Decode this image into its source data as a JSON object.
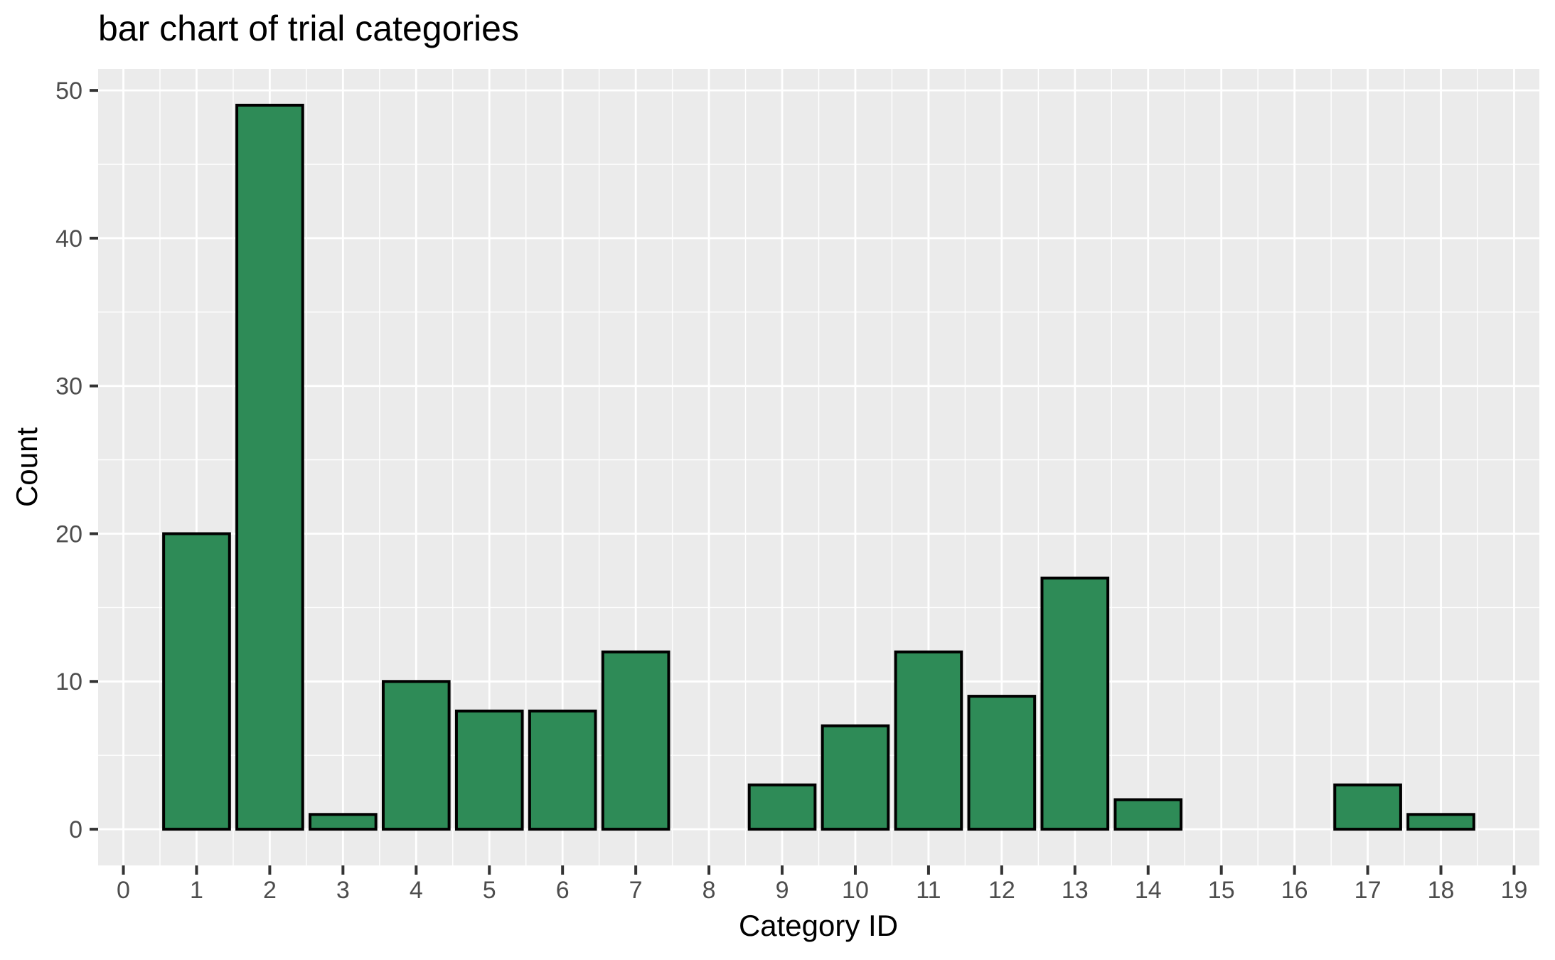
{
  "chart_data": {
    "type": "bar",
    "title": "bar chart of trial categories",
    "xlabel": "Category ID",
    "ylabel": "Count",
    "categories": [
      0,
      1,
      2,
      3,
      4,
      5,
      6,
      7,
      8,
      9,
      10,
      11,
      12,
      13,
      14,
      15,
      16,
      17,
      18,
      19
    ],
    "values": [
      0,
      20,
      49,
      1,
      10,
      8,
      8,
      12,
      0,
      3,
      7,
      12,
      9,
      17,
      2,
      0,
      0,
      3,
      1,
      0
    ],
    "bar_width": 0.9,
    "xlim": [
      -0.345,
      19.345
    ],
    "ylim": [
      -2.45,
      51.45
    ],
    "x_ticks": [
      0,
      1,
      2,
      3,
      4,
      5,
      6,
      7,
      8,
      9,
      10,
      11,
      12,
      13,
      14,
      15,
      16,
      17,
      18,
      19
    ],
    "y_ticks": [
      0,
      10,
      20,
      30,
      40,
      50
    ],
    "y_minor_ticks": [
      5,
      15,
      25,
      35,
      45
    ],
    "x_minor_ticks": [
      0.5,
      1.5,
      2.5,
      3.5,
      4.5,
      5.5,
      6.5,
      7.5,
      8.5,
      9.5,
      10.5,
      11.5,
      12.5,
      13.5,
      14.5,
      15.5,
      16.5,
      17.5,
      18.5
    ],
    "grid": "major+minor",
    "legend": "none",
    "style": {
      "bar_fill": "#2e8b57",
      "bar_edge": "#000000",
      "panel_bg": "#ebebeb",
      "grid_color": "#ffffff",
      "tick_label_color": "#4d4d4d",
      "tick_mark_color": "#333333",
      "title_color": "#000000",
      "axis_title_color": "#000000",
      "background": "#ffffff"
    }
  }
}
